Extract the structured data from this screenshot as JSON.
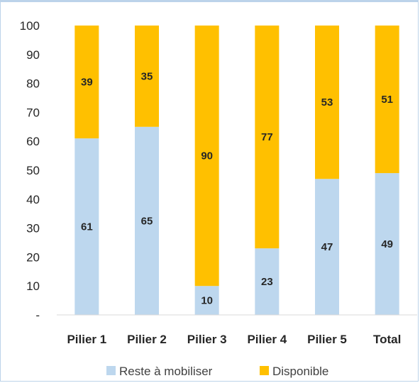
{
  "chart_data": {
    "type": "bar",
    "stacked": true,
    "categories": [
      "Pilier 1",
      "Pilier 2",
      "Pilier 3",
      "Pilier 4",
      "Pilier 5",
      "Total"
    ],
    "series": [
      {
        "name": "Reste à mobiliser",
        "color": "#bdd7ee",
        "values": [
          61,
          65,
          10,
          23,
          47,
          49
        ]
      },
      {
        "name": "Disponible",
        "color": "#ffc000",
        "values": [
          39,
          35,
          90,
          77,
          53,
          51
        ]
      }
    ],
    "ylim": [
      0,
      100
    ],
    "yticks": [
      0,
      10,
      20,
      30,
      40,
      50,
      60,
      70,
      80,
      90,
      100
    ],
    "ytick_labels": [
      "-",
      "10",
      "20",
      "30",
      "40",
      "50",
      "60",
      "70",
      "80",
      "90",
      "100"
    ],
    "legend_position": "bottom",
    "grid": false
  }
}
